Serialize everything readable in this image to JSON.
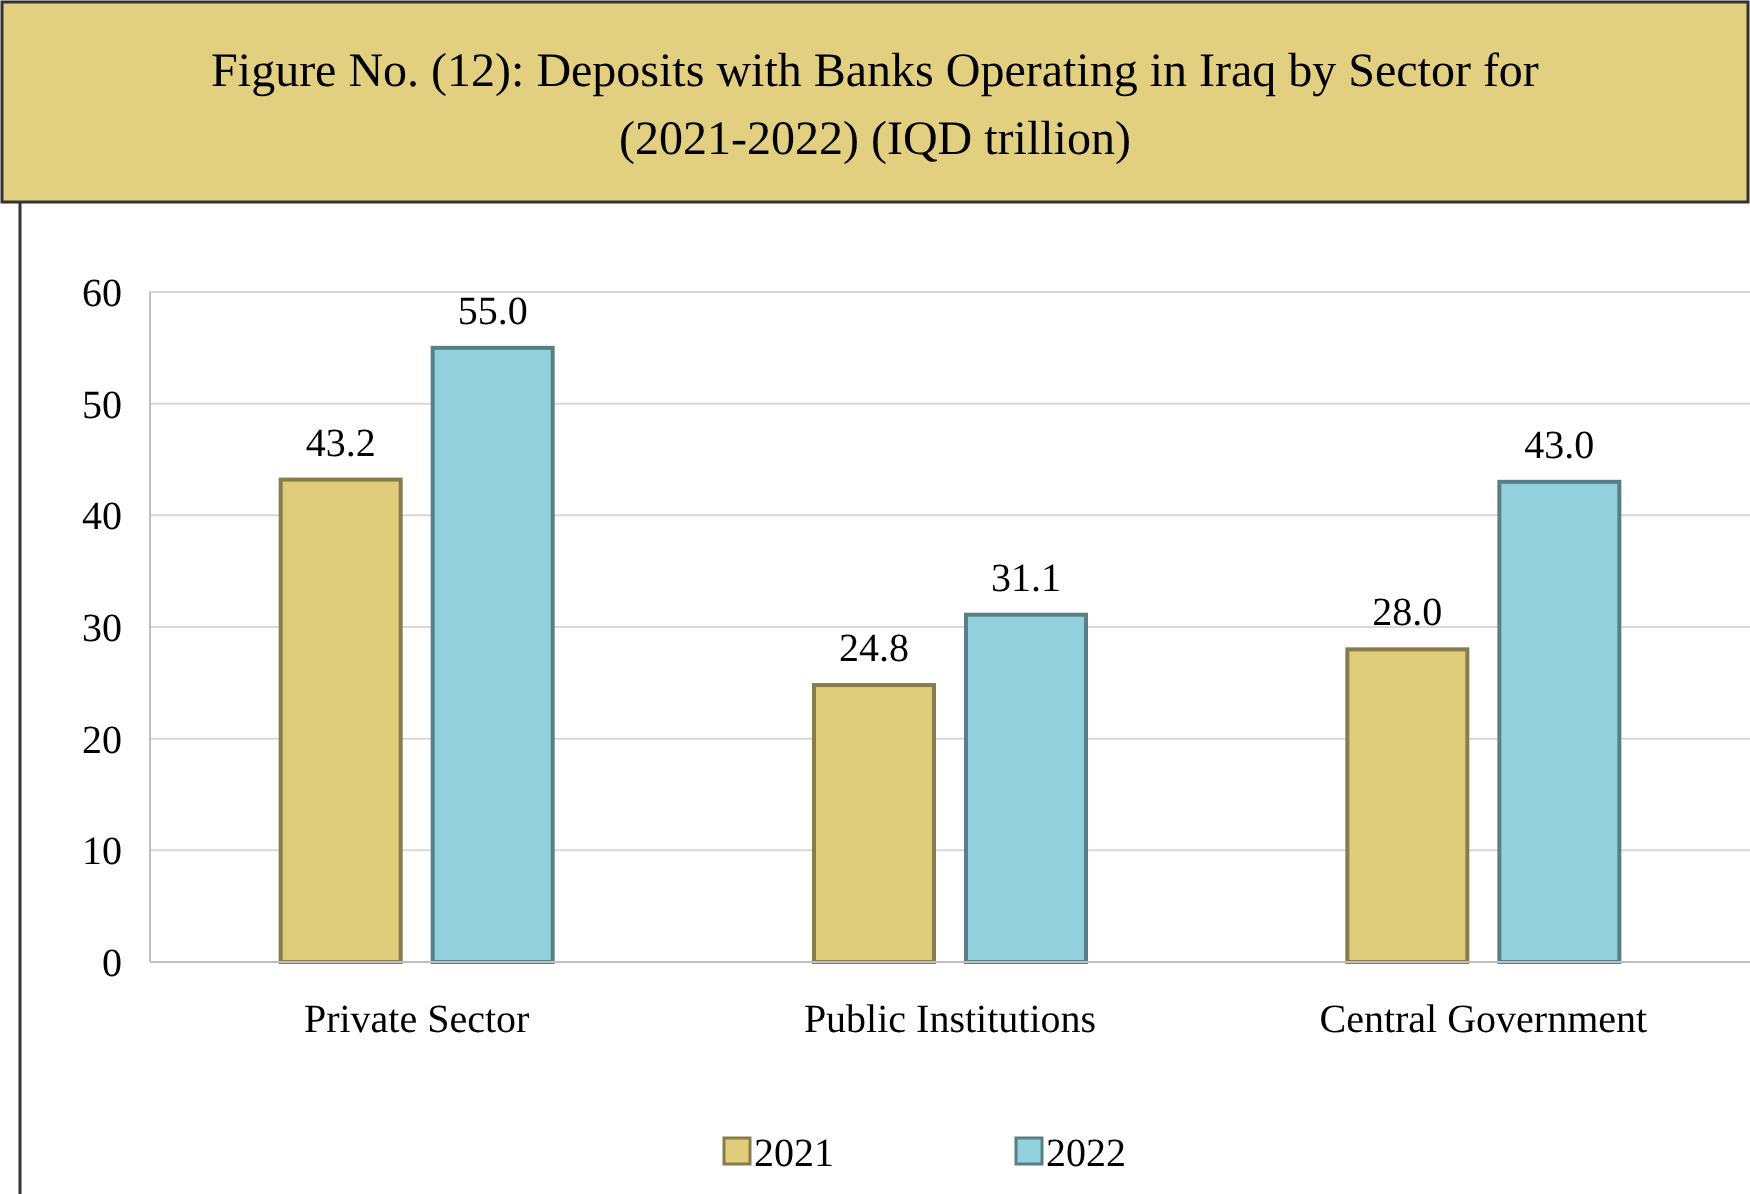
{
  "chart_data": {
    "type": "bar",
    "title": "Figure No. (12): Deposits with Banks Operating in Iraq by Sector for (2021-2022) (IQD trillion)",
    "categories": [
      "Private Sector",
      "Public Institutions",
      "Central Government"
    ],
    "series": [
      {
        "name": "2021",
        "color": "#e0cd7b",
        "values": [
          43.2,
          24.8,
          28.0
        ],
        "value_labels": [
          "43.2",
          "24.8",
          "28.0"
        ]
      },
      {
        "name": "2022",
        "color": "#92d1dc",
        "values": [
          55.0,
          31.1,
          43.0
        ],
        "value_labels": [
          "55.0",
          "31.1",
          "43.0"
        ]
      }
    ],
    "ylim": [
      0,
      60
    ],
    "yticks": [
      0,
      10,
      20,
      30,
      40,
      50,
      60
    ],
    "grid": "y",
    "legend": "bottom"
  }
}
